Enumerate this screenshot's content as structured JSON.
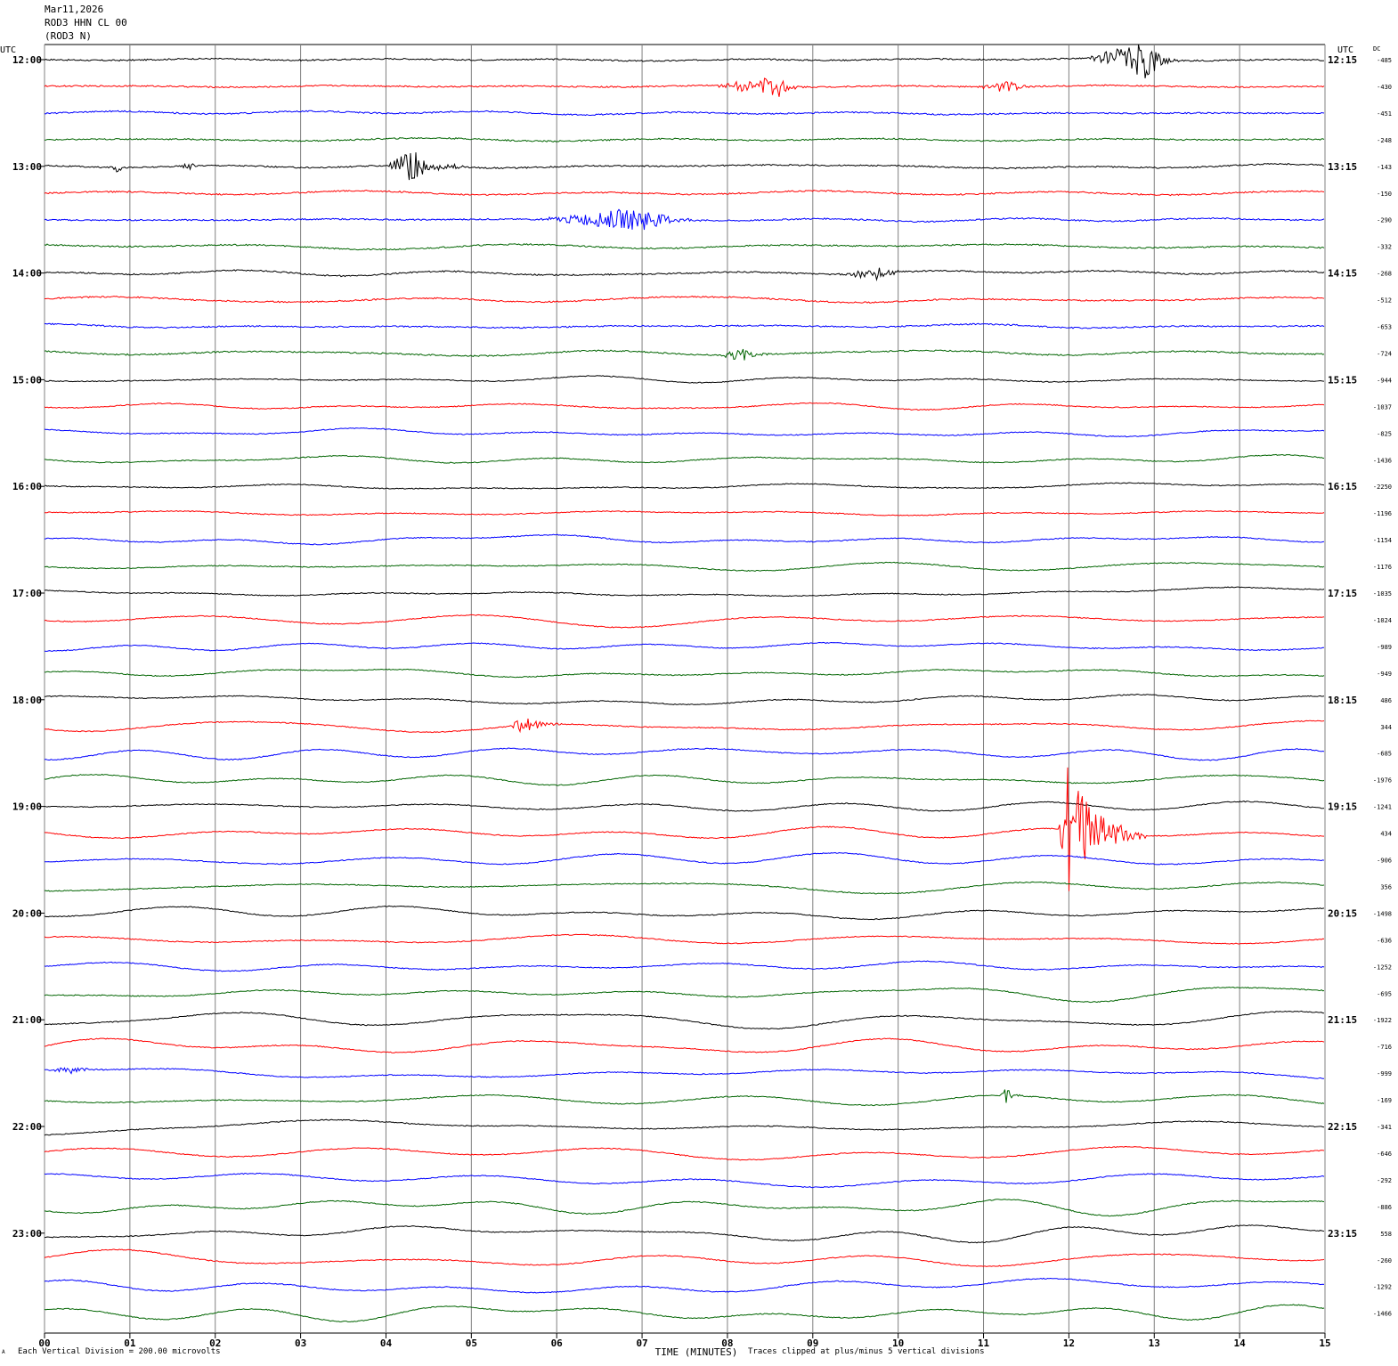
{
  "header": {
    "date": "Mar11,2026",
    "station": "ROD3 HHN CL 00",
    "station_alt": "(ROD3 N)"
  },
  "footer": {
    "scale": "Each Vertical Division =  200.00 microvolts",
    "clip_note": "Traces clipped at plus/minus 5 vertical divisions",
    "corner_mark": "A"
  },
  "colors": {
    "trace": [
      "#000000",
      "#ff0000",
      "#0000ff",
      "#006400"
    ],
    "grid": "#808080",
    "axis": "#000000",
    "background": "#ffffff"
  },
  "chart_data": {
    "type": "line",
    "title": "",
    "xlabel": "TIME (MINUTES)",
    "ylabel": "",
    "xlim": [
      0,
      15
    ],
    "x_ticks": [
      "00",
      "01",
      "02",
      "03",
      "04",
      "05",
      "06",
      "07",
      "08",
      "09",
      "10",
      "11",
      "12",
      "13",
      "14",
      "15"
    ],
    "left_axis_title": "UTC",
    "right_axis_title": "UTC",
    "dc_title": "DC",
    "grid": "vertical",
    "rows_per_hour": 4,
    "row_minutes": 15,
    "hour_labels_left": [
      "12:00",
      "13:00",
      "14:00",
      "15:00",
      "16:00",
      "17:00",
      "18:00",
      "19:00",
      "20:00",
      "21:00",
      "22:00",
      "23:00"
    ],
    "hour_labels_right": [
      "12:15",
      "13:15",
      "14:15",
      "15:15",
      "16:15",
      "17:15",
      "18:15",
      "19:15",
      "20:15",
      "21:15",
      "22:15",
      "23:15"
    ],
    "dc_offsets": [
      "-485",
      "-430",
      "-451",
      "-248",
      "-143",
      "-150",
      "-290",
      "-332",
      "-268",
      "-512",
      "-653",
      "-724",
      "-944",
      "-1037",
      "-825",
      "-1436",
      "-2250",
      "-1196",
      "-1154",
      "-1176",
      "-1035",
      "-1024",
      "-989",
      "-949",
      "486",
      "344",
      "-685",
      "-1976",
      "-1241",
      "434",
      "-906",
      "356",
      "-1498",
      "-636",
      "-1252",
      "-695",
      "-1922",
      "-716",
      "-999",
      "-169",
      "-341",
      "-646",
      "-292",
      "-886",
      "558",
      "-260",
      "-1292",
      "-1466"
    ],
    "events": [
      {
        "row": 0,
        "start_min": 12.2,
        "end_min": 13.3,
        "peak_min": 12.95,
        "amplitude_div": 1.5
      },
      {
        "row": 1,
        "start_min": 7.8,
        "end_min": 8.9,
        "peak_min": 8.6,
        "amplitude_div": 0.8
      },
      {
        "row": 1,
        "start_min": 10.9,
        "end_min": 11.6,
        "peak_min": 11.3,
        "amplitude_div": 0.5
      },
      {
        "row": 4,
        "start_min": 4.0,
        "end_min": 5.0,
        "peak_min": 4.25,
        "amplitude_div": 1.5
      },
      {
        "row": 4,
        "start_min": 0.75,
        "end_min": 0.9,
        "peak_min": 0.85,
        "amplitude_div": 0.4
      },
      {
        "row": 4,
        "start_min": 1.6,
        "end_min": 1.8,
        "peak_min": 1.7,
        "amplitude_div": 0.4
      },
      {
        "row": 6,
        "start_min": 5.7,
        "end_min": 7.7,
        "peak_min": 7.05,
        "amplitude_div": 0.9
      },
      {
        "row": 8,
        "start_min": 9.3,
        "end_min": 10.2,
        "peak_min": 9.8,
        "amplitude_div": 0.5
      },
      {
        "row": 11,
        "start_min": 7.9,
        "end_min": 8.6,
        "peak_min": 8.2,
        "amplitude_div": 0.6
      },
      {
        "row": 25,
        "start_min": 5.45,
        "end_min": 6.1,
        "peak_min": 5.6,
        "amplitude_div": 0.7
      },
      {
        "row": 29,
        "start_min": 11.88,
        "end_min": 12.9,
        "peak_min": 11.98,
        "amplitude_div": 5.0
      },
      {
        "row": 38,
        "start_min": 0.0,
        "end_min": 0.8,
        "peak_min": 0.3,
        "amplitude_div": 0.3
      },
      {
        "row": 39,
        "start_min": 11.2,
        "end_min": 11.5,
        "peak_min": 11.25,
        "amplitude_div": 0.7
      }
    ]
  }
}
